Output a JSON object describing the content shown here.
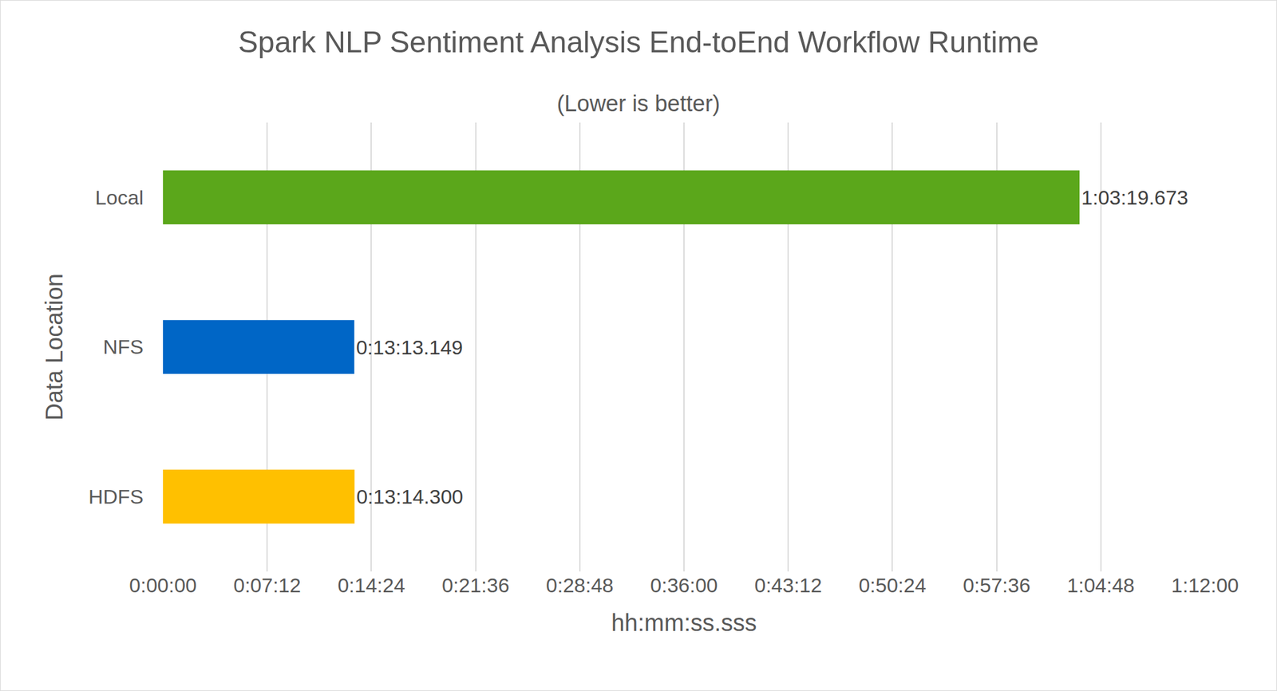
{
  "chart_data": {
    "type": "bar",
    "orientation": "horizontal",
    "title": "Spark NLP Sentiment Analysis End-toEnd Workflow Runtime",
    "subtitle": "(Lower is better)",
    "x_label": "hh:mm:ss.sss",
    "y_label": "Data Location",
    "categories": [
      "Local",
      "NFS",
      "HDFS"
    ],
    "values": [
      3799.673,
      793.149,
      794.3
    ],
    "value_labels": [
      "1:03:19.673",
      "0:13:13.149",
      "0:13:14.300"
    ],
    "colors": [
      "#5ba71b",
      "#0066c6",
      "#ffc000"
    ],
    "xlim": [
      0,
      4320
    ],
    "xticks": [
      {
        "value": 0,
        "label": "0:00:00"
      },
      {
        "value": 432,
        "label": "0:07:12"
      },
      {
        "value": 864,
        "label": "0:14:24"
      },
      {
        "value": 1296,
        "label": "0:21:36"
      },
      {
        "value": 1728,
        "label": "0:28:48"
      },
      {
        "value": 2160,
        "label": "0:36:00"
      },
      {
        "value": 2592,
        "label": "0:43:12"
      },
      {
        "value": 3024,
        "label": "0:50:24"
      },
      {
        "value": 3456,
        "label": "0:57:36"
      },
      {
        "value": 3888,
        "label": "1:04:48"
      },
      {
        "value": 4320,
        "label": "1:12:00"
      }
    ],
    "grid": true,
    "data_labels": true
  }
}
